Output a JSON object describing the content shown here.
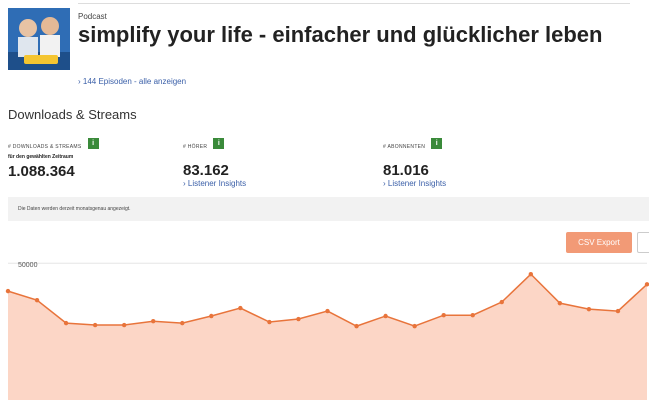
{
  "header": {
    "label": "Podcast",
    "title": "simplify your life - einfacher und glücklicher leben",
    "episodes_link": "› 144 Episoden - alle anzeigen"
  },
  "section_title": "Downloads & Streams",
  "kpis": [
    {
      "label": "# DOWNLOADS & STREAMS",
      "sublabel": "für den gewählten Zeitraum",
      "value": "1.088.364"
    },
    {
      "label": "# HÖRER",
      "value": "83.162",
      "link": "› Listener Insights"
    },
    {
      "label": "# ABONNENTEN",
      "value": "81.016",
      "link": "› Listener Insights"
    }
  ],
  "info_badge": "i",
  "notice": "Die Daten werden derzeit monatsgenau angezeigt.",
  "export_button": "CSV Export",
  "chart_data": {
    "type": "area",
    "categories": [
      null,
      null,
      null,
      null,
      null,
      null,
      null,
      null,
      null,
      null,
      null,
      null,
      null,
      null,
      null,
      null,
      null,
      null,
      null,
      null,
      null,
      null,
      null
    ],
    "values": [
      39800,
      36500,
      28100,
      27400,
      27400,
      28800,
      28100,
      30700,
      33600,
      28500,
      29600,
      32500,
      27000,
      30700,
      27000,
      31000,
      31000,
      35800,
      46000,
      35400,
      33200,
      32500,
      42300
    ],
    "color": "#e8743b",
    "fill": "#fcd6c6",
    "ylim": [
      0,
      53000
    ],
    "yticks": [
      50000
    ],
    "grid": true
  }
}
